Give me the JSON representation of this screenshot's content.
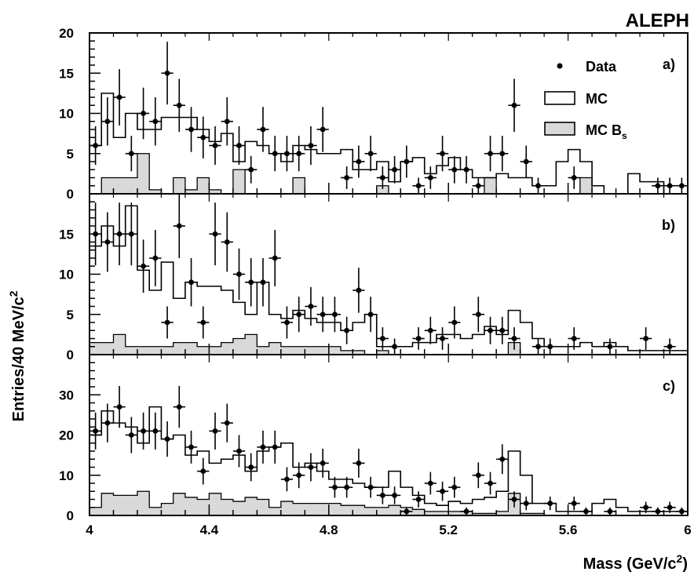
{
  "header": {
    "experiment": "ALEPH"
  },
  "chart_data": {
    "type": "histogram",
    "experiment_label": "ALEPH",
    "xlabel_main": "Mass (GeV/c",
    "xlabel_exp": "2",
    "xlabel_close": ")",
    "ylabel_main": "Entries/40 MeV/c",
    "ylabel_exp": "2",
    "xlim": [
      4,
      6
    ],
    "x_ticks": [
      4,
      4.4,
      4.8,
      5.2,
      5.6,
      6
    ],
    "x_tick_labels": [
      "4",
      "4.4",
      "4.8",
      "5.2",
      "5.6",
      "6"
    ],
    "bin_width": 0.04,
    "grid": false,
    "legend": {
      "placement": "top-right of panel a",
      "data": "Data",
      "mc": "MC",
      "mcbs_main": "MC B",
      "mcbs_sub": "s"
    },
    "panels": [
      {
        "label": "a)",
        "ylim": [
          0,
          20
        ],
        "y_ticks": [
          0,
          5,
          10,
          15,
          20
        ],
        "y_tick_labels": [
          "0",
          "5",
          "10",
          "15",
          "20"
        ],
        "mc": [
          6,
          12.5,
          7,
          10,
          8,
          8,
          9.5,
          9.5,
          9.5,
          8,
          6.5,
          7.5,
          4,
          6.5,
          6,
          5,
          4,
          6,
          5.5,
          5,
          5,
          5.5,
          3,
          3,
          4,
          1.5,
          4,
          4.5,
          2.5,
          3.5,
          4.5,
          3,
          2,
          2,
          2.5,
          2,
          2,
          1,
          1,
          4,
          5.5,
          4,
          1,
          0,
          0,
          2.5,
          1.5,
          1.5,
          0,
          0
        ],
        "mcbs": [
          0,
          2,
          2,
          2,
          5,
          0.5,
          0,
          2,
          0.5,
          2,
          0.5,
          0,
          3,
          0,
          0,
          0,
          0,
          2,
          0,
          0,
          0,
          0,
          0,
          0,
          1,
          0,
          0,
          0,
          0,
          0,
          0,
          0,
          0,
          2,
          0,
          0,
          0,
          0,
          0,
          0,
          0,
          2,
          0,
          0,
          0,
          0,
          0,
          0,
          0,
          0
        ],
        "data_points": [
          {
            "x": 4.02,
            "y": 6,
            "e": 2.4
          },
          {
            "x": 4.06,
            "y": 9,
            "e": 3
          },
          {
            "x": 4.1,
            "y": 12,
            "e": 3.5
          },
          {
            "x": 4.14,
            "y": 5,
            "e": 2.2
          },
          {
            "x": 4.18,
            "y": 10,
            "e": 3.2
          },
          {
            "x": 4.22,
            "y": 9,
            "e": 3
          },
          {
            "x": 4.26,
            "y": 15,
            "e": 3.9
          },
          {
            "x": 4.3,
            "y": 11,
            "e": 3.3
          },
          {
            "x": 4.34,
            "y": 8,
            "e": 2.8
          },
          {
            "x": 4.38,
            "y": 7,
            "e": 2.6
          },
          {
            "x": 4.42,
            "y": 6,
            "e": 2.4
          },
          {
            "x": 4.46,
            "y": 9,
            "e": 3
          },
          {
            "x": 4.5,
            "y": 6,
            "e": 2.4
          },
          {
            "x": 4.54,
            "y": 3,
            "e": 1.7
          },
          {
            "x": 4.58,
            "y": 8,
            "e": 2.8
          },
          {
            "x": 4.62,
            "y": 5,
            "e": 2.2
          },
          {
            "x": 4.66,
            "y": 5,
            "e": 2.2
          },
          {
            "x": 4.7,
            "y": 5,
            "e": 2.2
          },
          {
            "x": 4.74,
            "y": 6,
            "e": 2.4
          },
          {
            "x": 4.78,
            "y": 8,
            "e": 2.8
          },
          {
            "x": 4.86,
            "y": 2,
            "e": 1.4
          },
          {
            "x": 4.9,
            "y": 4,
            "e": 2
          },
          {
            "x": 4.94,
            "y": 5,
            "e": 2.2
          },
          {
            "x": 4.98,
            "y": 2,
            "e": 1.4
          },
          {
            "x": 5.02,
            "y": 3,
            "e": 1.7
          },
          {
            "x": 5.06,
            "y": 4,
            "e": 2
          },
          {
            "x": 5.1,
            "y": 1,
            "e": 1
          },
          {
            "x": 5.14,
            "y": 2,
            "e": 1.4
          },
          {
            "x": 5.18,
            "y": 5,
            "e": 2.2
          },
          {
            "x": 5.22,
            "y": 3,
            "e": 1.7
          },
          {
            "x": 5.26,
            "y": 3,
            "e": 1.7
          },
          {
            "x": 5.3,
            "y": 1,
            "e": 1
          },
          {
            "x": 5.34,
            "y": 5,
            "e": 2.2
          },
          {
            "x": 5.38,
            "y": 5,
            "e": 2.2
          },
          {
            "x": 5.42,
            "y": 11,
            "e": 3.3
          },
          {
            "x": 5.46,
            "y": 4,
            "e": 2
          },
          {
            "x": 5.5,
            "y": 1,
            "e": 1
          },
          {
            "x": 5.62,
            "y": 2,
            "e": 1.4
          },
          {
            "x": 5.9,
            "y": 1,
            "e": 1
          },
          {
            "x": 5.94,
            "y": 1,
            "e": 1
          },
          {
            "x": 5.98,
            "y": 1,
            "e": 1
          }
        ]
      },
      {
        "label": "b)",
        "ylim": [
          0,
          20
        ],
        "y_ticks": [
          0,
          5,
          10,
          15
        ],
        "y_tick_labels": [
          "0",
          "5",
          "10",
          "15"
        ],
        "mc": [
          13.5,
          16,
          13.5,
          18.5,
          10.5,
          8,
          11.5,
          7,
          9,
          8.5,
          8.5,
          8,
          6.5,
          5,
          9,
          5,
          4.5,
          5.5,
          4.5,
          4,
          4,
          3,
          4,
          5,
          1,
          1,
          1,
          1.5,
          1.5,
          2.5,
          2.5,
          2,
          2.5,
          3.5,
          2.5,
          5.5,
          4,
          2,
          1,
          1,
          1,
          1.5,
          1,
          1.5,
          1,
          0.5,
          0.5,
          0.5,
          0.5,
          0.5
        ],
        "mcbs": [
          1.5,
          1.5,
          2.5,
          1,
          1,
          1,
          1,
          1.5,
          1.5,
          1,
          1,
          1.5,
          2,
          2.5,
          1,
          1.5,
          1,
          1,
          1,
          1,
          1,
          0.5,
          0.5,
          0,
          0.5,
          0,
          0,
          0,
          0,
          0,
          0,
          0,
          0,
          0,
          0,
          1.5,
          0,
          0,
          0,
          0,
          0,
          0,
          0,
          0,
          0,
          0,
          0,
          0,
          0,
          0
        ],
        "data_points": [
          {
            "x": 4.02,
            "y": 15,
            "e": 3.9
          },
          {
            "x": 4.06,
            "y": 14,
            "e": 3.7
          },
          {
            "x": 4.1,
            "y": 15,
            "e": 3.9
          },
          {
            "x": 4.14,
            "y": 15,
            "e": 3.9
          },
          {
            "x": 4.18,
            "y": 11,
            "e": 3.3
          },
          {
            "x": 4.22,
            "y": 12,
            "e": 3.5
          },
          {
            "x": 4.26,
            "y": 4,
            "e": 2
          },
          {
            "x": 4.3,
            "y": 16,
            "e": 4
          },
          {
            "x": 4.34,
            "y": 9,
            "e": 3
          },
          {
            "x": 4.38,
            "y": 4,
            "e": 2
          },
          {
            "x": 4.42,
            "y": 15,
            "e": 3.9
          },
          {
            "x": 4.46,
            "y": 14,
            "e": 3.7
          },
          {
            "x": 4.5,
            "y": 10,
            "e": 3.2
          },
          {
            "x": 4.54,
            "y": 9,
            "e": 3
          },
          {
            "x": 4.58,
            "y": 9,
            "e": 3
          },
          {
            "x": 4.62,
            "y": 12,
            "e": 3.5
          },
          {
            "x": 4.66,
            "y": 4,
            "e": 2
          },
          {
            "x": 4.7,
            "y": 5,
            "e": 2.2
          },
          {
            "x": 4.74,
            "y": 6,
            "e": 2.4
          },
          {
            "x": 4.78,
            "y": 5,
            "e": 2.2
          },
          {
            "x": 4.82,
            "y": 5,
            "e": 2.2
          },
          {
            "x": 4.86,
            "y": 3,
            "e": 1.7
          },
          {
            "x": 4.9,
            "y": 8,
            "e": 2.8
          },
          {
            "x": 4.94,
            "y": 5,
            "e": 2.2
          },
          {
            "x": 4.98,
            "y": 2,
            "e": 1.4
          },
          {
            "x": 5.02,
            "y": 1,
            "e": 1
          },
          {
            "x": 5.1,
            "y": 2,
            "e": 1.4
          },
          {
            "x": 5.14,
            "y": 3,
            "e": 1.7
          },
          {
            "x": 5.18,
            "y": 2,
            "e": 1.4
          },
          {
            "x": 5.22,
            "y": 4,
            "e": 2
          },
          {
            "x": 5.3,
            "y": 5,
            "e": 2.2
          },
          {
            "x": 5.34,
            "y": 3,
            "e": 1.7
          },
          {
            "x": 5.38,
            "y": 3,
            "e": 1.7
          },
          {
            "x": 5.42,
            "y": 2,
            "e": 1.4
          },
          {
            "x": 5.5,
            "y": 1,
            "e": 1
          },
          {
            "x": 5.54,
            "y": 1,
            "e": 1
          },
          {
            "x": 5.62,
            "y": 2,
            "e": 1.4
          },
          {
            "x": 5.74,
            "y": 1,
            "e": 1
          },
          {
            "x": 5.86,
            "y": 2,
            "e": 1.4
          },
          {
            "x": 5.94,
            "y": 1,
            "e": 1
          }
        ]
      },
      {
        "label": "c)",
        "ylim": [
          0,
          40
        ],
        "y_ticks": [
          0,
          10,
          20,
          30
        ],
        "y_tick_labels": [
          "0",
          "10",
          "20",
          "30"
        ],
        "mc": [
          20,
          26,
          23,
          22,
          18,
          27,
          19,
          20,
          15,
          16,
          13,
          14,
          15,
          11,
          16,
          17,
          18,
          12,
          13,
          11,
          9,
          9,
          8,
          7,
          7,
          11,
          7,
          5,
          3,
          2.5,
          3.5,
          3,
          4,
          4.5,
          6,
          16,
          10,
          3,
          3,
          1,
          1,
          1,
          3,
          4,
          2,
          1,
          1,
          1,
          1,
          1
        ],
        "mcbs": [
          2,
          5.5,
          5,
          5,
          6,
          2,
          3,
          5.5,
          4.5,
          4,
          5.5,
          4,
          3.5,
          4.5,
          4,
          2,
          3.5,
          3,
          3,
          3,
          3,
          2.5,
          2.5,
          2,
          2,
          2.5,
          2,
          1.5,
          1,
          1,
          1,
          1,
          0.5,
          0.5,
          1,
          5.5,
          0.5,
          0.5,
          0,
          0,
          0,
          0,
          0,
          0,
          0,
          0,
          0,
          0,
          0,
          0
        ],
        "data_points": [
          {
            "x": 4.02,
            "y": 21,
            "e": 4.6
          },
          {
            "x": 4.06,
            "y": 23,
            "e": 4.8
          },
          {
            "x": 4.1,
            "y": 27,
            "e": 5.2
          },
          {
            "x": 4.14,
            "y": 20,
            "e": 4.5
          },
          {
            "x": 4.18,
            "y": 21,
            "e": 4.6
          },
          {
            "x": 4.22,
            "y": 21,
            "e": 4.6
          },
          {
            "x": 4.26,
            "y": 19,
            "e": 4.4
          },
          {
            "x": 4.3,
            "y": 27,
            "e": 5.2
          },
          {
            "x": 4.34,
            "y": 17,
            "e": 4.1
          },
          {
            "x": 4.38,
            "y": 11,
            "e": 3.3
          },
          {
            "x": 4.42,
            "y": 21,
            "e": 4.6
          },
          {
            "x": 4.46,
            "y": 23,
            "e": 4.8
          },
          {
            "x": 4.5,
            "y": 16,
            "e": 4
          },
          {
            "x": 4.54,
            "y": 12,
            "e": 3.5
          },
          {
            "x": 4.58,
            "y": 17,
            "e": 4.1
          },
          {
            "x": 4.62,
            "y": 17,
            "e": 4.1
          },
          {
            "x": 4.66,
            "y": 9,
            "e": 3
          },
          {
            "x": 4.7,
            "y": 10,
            "e": 3.2
          },
          {
            "x": 4.74,
            "y": 12,
            "e": 3.5
          },
          {
            "x": 4.78,
            "y": 13,
            "e": 3.6
          },
          {
            "x": 4.82,
            "y": 7,
            "e": 2.6
          },
          {
            "x": 4.86,
            "y": 7,
            "e": 2.6
          },
          {
            "x": 4.9,
            "y": 13,
            "e": 3.6
          },
          {
            "x": 4.94,
            "y": 7,
            "e": 2.6
          },
          {
            "x": 4.98,
            "y": 5,
            "e": 2.2
          },
          {
            "x": 5.02,
            "y": 5,
            "e": 2.2
          },
          {
            "x": 5.06,
            "y": 1,
            "e": 1
          },
          {
            "x": 5.1,
            "y": 4,
            "e": 2
          },
          {
            "x": 5.14,
            "y": 8,
            "e": 2.8
          },
          {
            "x": 5.18,
            "y": 6,
            "e": 2.4
          },
          {
            "x": 5.22,
            "y": 7,
            "e": 2.6
          },
          {
            "x": 5.26,
            "y": 1,
            "e": 1
          },
          {
            "x": 5.3,
            "y": 10,
            "e": 3.2
          },
          {
            "x": 5.34,
            "y": 8,
            "e": 2.8
          },
          {
            "x": 5.38,
            "y": 14,
            "e": 3.7
          },
          {
            "x": 5.42,
            "y": 4,
            "e": 2
          },
          {
            "x": 5.46,
            "y": 3,
            "e": 1.7
          },
          {
            "x": 5.54,
            "y": 3,
            "e": 1.7
          },
          {
            "x": 5.62,
            "y": 3,
            "e": 1.7
          },
          {
            "x": 5.66,
            "y": 1,
            "e": 1
          },
          {
            "x": 5.74,
            "y": 1,
            "e": 1
          },
          {
            "x": 5.86,
            "y": 2,
            "e": 1.4
          },
          {
            "x": 5.9,
            "y": 1,
            "e": 1
          },
          {
            "x": 5.94,
            "y": 2,
            "e": 1.4
          },
          {
            "x": 5.98,
            "y": 1,
            "e": 1
          }
        ]
      }
    ]
  }
}
